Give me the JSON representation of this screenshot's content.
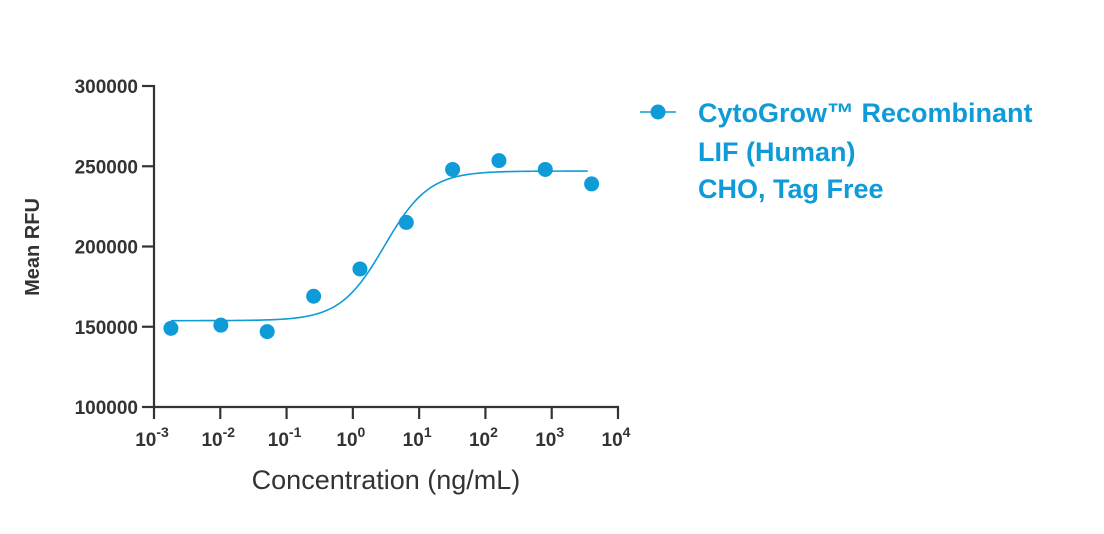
{
  "chart_data": {
    "type": "scatter",
    "title": "",
    "xlabel": "Concentration (ng/mL)",
    "ylabel": "Mean RFU",
    "xscale": "log10",
    "xlim_exponent": [
      -3,
      4
    ],
    "ylim": [
      100000,
      300000
    ],
    "y_ticks": [
      {
        "value": 100000,
        "label": "100000"
      },
      {
        "value": 150000,
        "label": "150000"
      },
      {
        "value": 200000,
        "label": "200000"
      },
      {
        "value": 250000,
        "label": "250000"
      },
      {
        "value": 300000,
        "label": "300000"
      }
    ],
    "x_ticks": [
      {
        "exp": -3,
        "base": "10",
        "sup": "-3"
      },
      {
        "exp": -2,
        "base": "10",
        "sup": "-2"
      },
      {
        "exp": -1,
        "base": "10",
        "sup": "-1"
      },
      {
        "exp": 0,
        "base": "10",
        "sup": "0"
      },
      {
        "exp": 1,
        "base": "10",
        "sup": "1"
      },
      {
        "exp": 2,
        "base": "10",
        "sup": "2"
      },
      {
        "exp": 3,
        "base": "10",
        "sup": "3"
      },
      {
        "exp": 4,
        "base": "10",
        "sup": "4"
      }
    ],
    "series": [
      {
        "name": "CytoGrow™ Recombinant LIF (Human) CHO, Tag Free",
        "legend_lines": [
          "CytoGrow™ Recombinant",
          "LIF (Human)",
          "CHO, Tag Free"
        ],
        "color": "#0e9bd8",
        "points": [
          {
            "x": 0.0018,
            "y": 149000
          },
          {
            "x": 0.0102,
            "y": 151000
          },
          {
            "x": 0.051,
            "y": 147000
          },
          {
            "x": 0.256,
            "y": 169000
          },
          {
            "x": 1.28,
            "y": 186000
          },
          {
            "x": 6.4,
            "y": 215000
          },
          {
            "x": 32,
            "y": 248000
          },
          {
            "x": 160,
            "y": 253500
          },
          {
            "x": 800,
            "y": 248000
          },
          {
            "x": 4000,
            "y": 239000
          }
        ],
        "fit": {
          "model": "4PL",
          "bottom": 153800,
          "top": 247000,
          "ec50": 3.0,
          "hill": 1.3,
          "x_range": [
            0.0018,
            3500
          ]
        }
      }
    ],
    "grid": false,
    "legend_position": "right"
  }
}
